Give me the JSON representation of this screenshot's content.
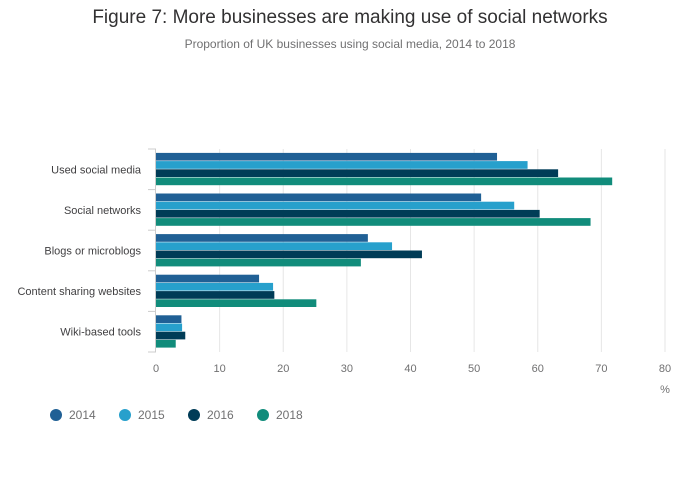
{
  "colors": {
    "2014": "#206095",
    "2015": "#27a0cc",
    "2016": "#003c57",
    "2018": "#118c7b"
  },
  "chart_data": {
    "type": "bar",
    "orientation": "horizontal",
    "title": "Figure 7: More businesses are making use of social networks",
    "subtitle": "Proportion of UK businesses using social media, 2014 to 2018",
    "categories": [
      "Used social media",
      "Social networks",
      "Blogs or microblogs",
      "Content sharing websites",
      "Wiki-based tools"
    ],
    "series": [
      {
        "name": "2014",
        "values": [
          53.6,
          51.1,
          33.3,
          16.2,
          4.0
        ]
      },
      {
        "name": "2015",
        "values": [
          58.4,
          56.3,
          37.1,
          18.4,
          4.1
        ]
      },
      {
        "name": "2016",
        "values": [
          63.2,
          60.3,
          41.8,
          18.6,
          4.6
        ]
      },
      {
        "name": "2018",
        "values": [
          71.7,
          68.3,
          32.2,
          25.2,
          3.1
        ]
      }
    ],
    "xlim": [
      0,
      80
    ],
    "xticks": [
      0,
      10,
      20,
      30,
      40,
      50,
      60,
      70,
      80
    ],
    "xlabel": "%",
    "grid": true,
    "legend_position": "bottom-left"
  }
}
